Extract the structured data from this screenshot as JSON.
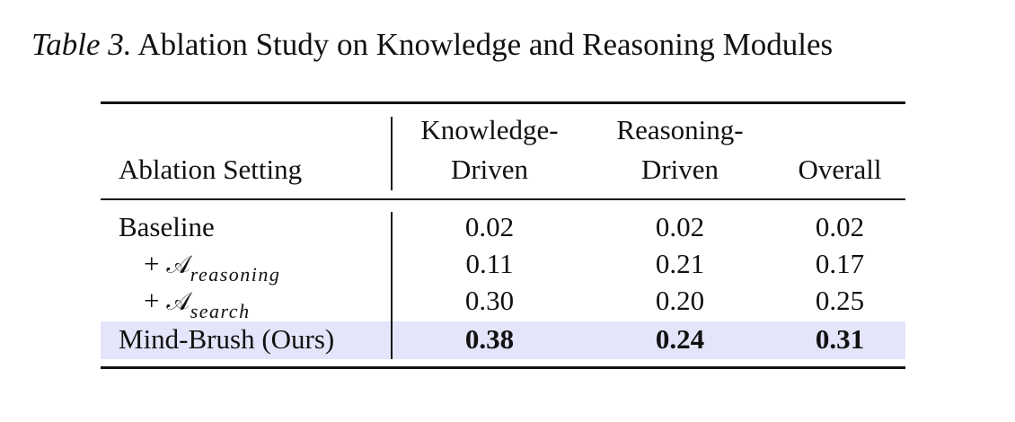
{
  "caption": {
    "label": "Table 3.",
    "title": "Ablation Study on Knowledge and Reasoning Modules"
  },
  "table": {
    "header": [
      {
        "lines": [
          "Ablation Setting"
        ]
      },
      {
        "lines": [
          "Knowledge-",
          "Driven"
        ]
      },
      {
        "lines": [
          "Reasoning-",
          "Driven"
        ]
      },
      {
        "lines": [
          "Overall"
        ]
      }
    ],
    "rows": [
      [
        {
          "text": "Baseline"
        },
        "0.02",
        "0.02",
        "0.02"
      ],
      [
        {
          "prefix": "+",
          "symbol": "𝒜",
          "subscript": "reasoning"
        },
        "0.11",
        "0.21",
        "0.17"
      ],
      [
        {
          "prefix": "+",
          "symbol": "𝒜",
          "subscript": "search"
        },
        "0.30",
        "0.20",
        "0.25"
      ],
      [
        {
          "text": "Mind-Brush (Ours)"
        },
        "0.38",
        "0.24",
        "0.31"
      ]
    ]
  }
}
